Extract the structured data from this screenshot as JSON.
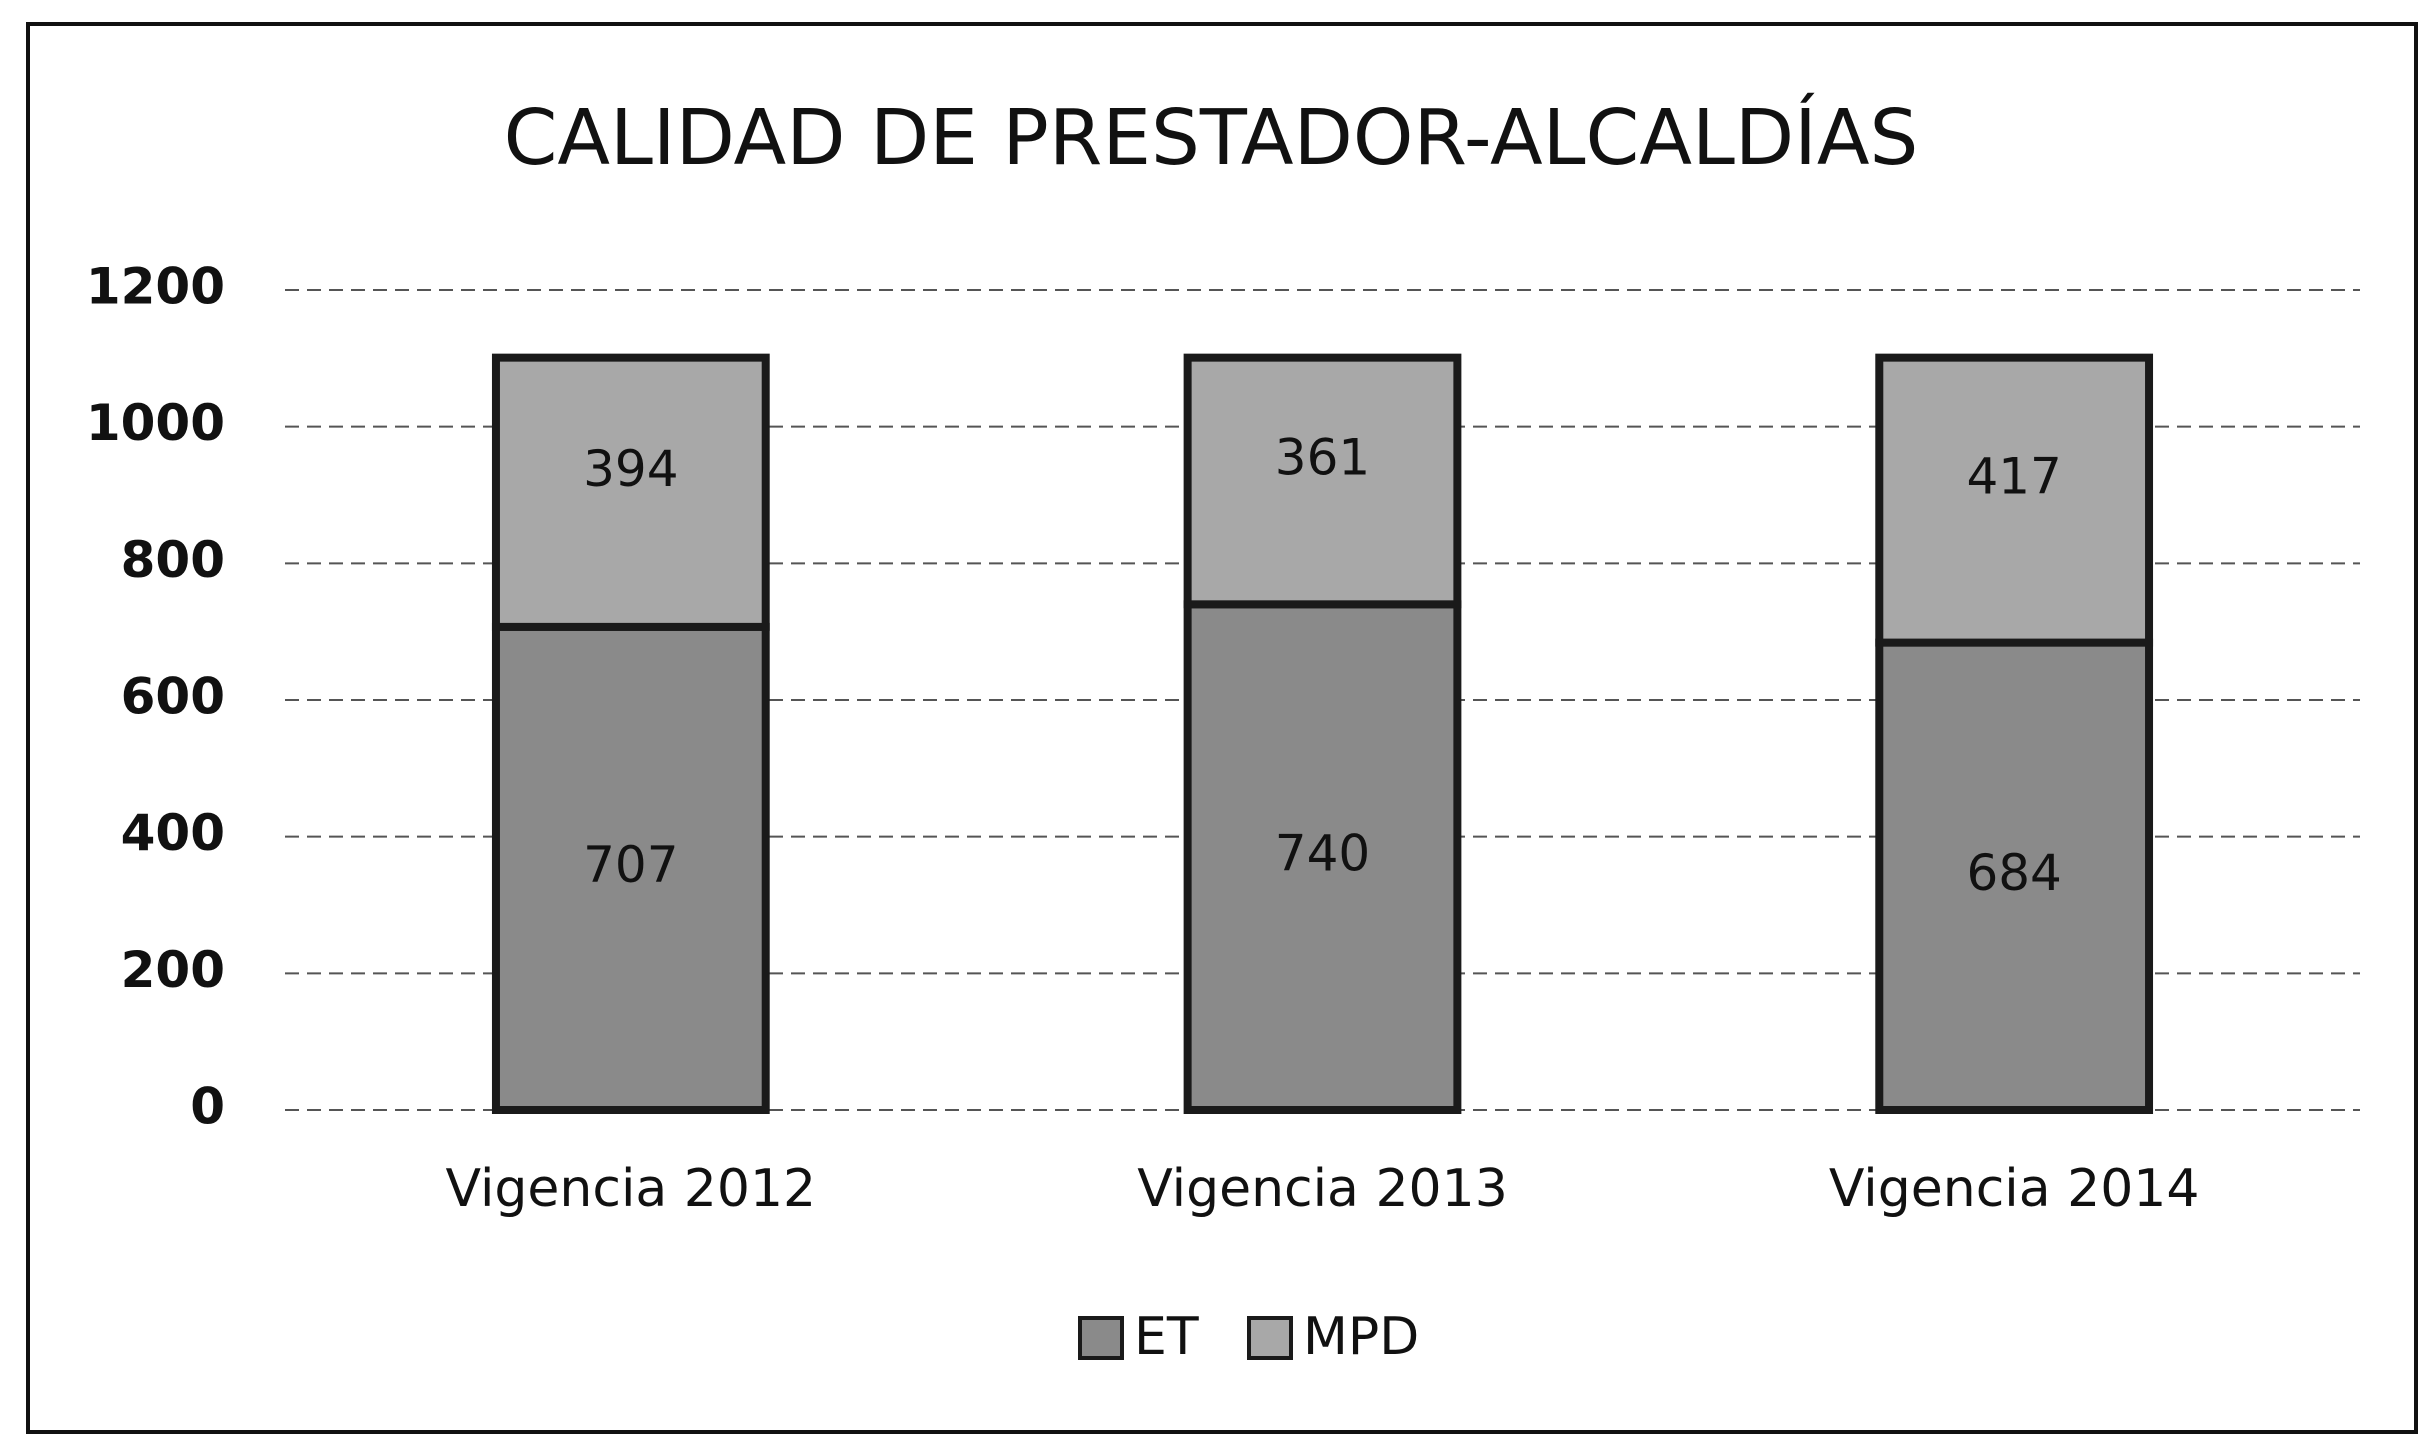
{
  "chart_data": {
    "type": "stacked_bar",
    "title": "CALIDAD DE PRESTADOR-ALCALDÍAS",
    "categories": [
      "Vigencia 2012",
      "Vigencia 2013",
      "Vigencia 2014"
    ],
    "series": [
      {
        "name": "ET",
        "color": "#8a8a8a",
        "values": [
          707,
          740,
          684
        ]
      },
      {
        "name": "MPD",
        "color": "#a8a8a8",
        "values": [
          394,
          361,
          417
        ]
      }
    ],
    "ylim": [
      0,
      1200
    ],
    "yticks": [
      0,
      200,
      400,
      600,
      800,
      1000,
      1200
    ],
    "grid": true,
    "legend": "bottom"
  }
}
